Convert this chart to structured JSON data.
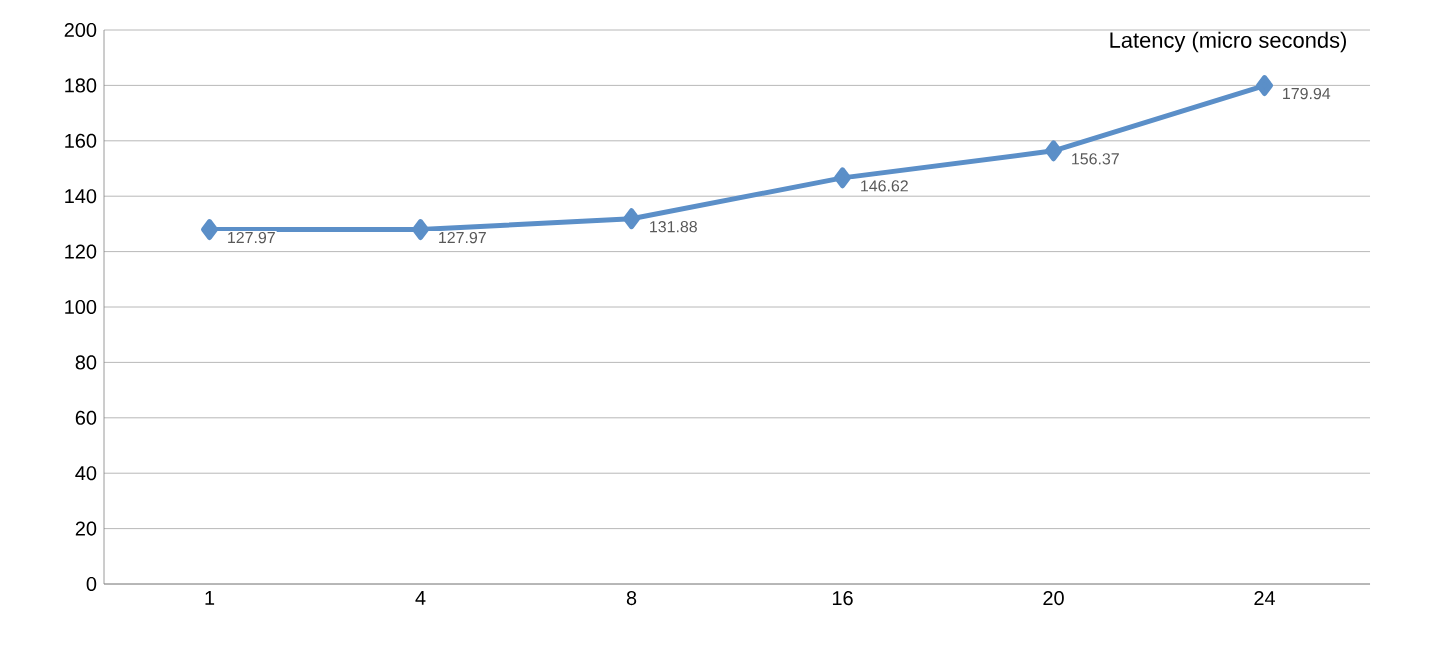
{
  "chart_data": {
    "type": "line",
    "title": "Latency (micro seconds)",
    "categories": [
      "1",
      "4",
      "8",
      "16",
      "20",
      "24"
    ],
    "series": [
      {
        "color": "#5b8fc8",
        "values": [
          127.97,
          127.97,
          131.88,
          146.62,
          156.37,
          179.94
        ]
      }
    ],
    "ylim": [
      0,
      200
    ],
    "yticks": [
      0,
      20,
      40,
      60,
      80,
      100,
      120,
      140,
      160,
      180,
      200
    ],
    "grid": "y",
    "marker": "diamond",
    "line_style": "solid",
    "data_labels": true
  }
}
